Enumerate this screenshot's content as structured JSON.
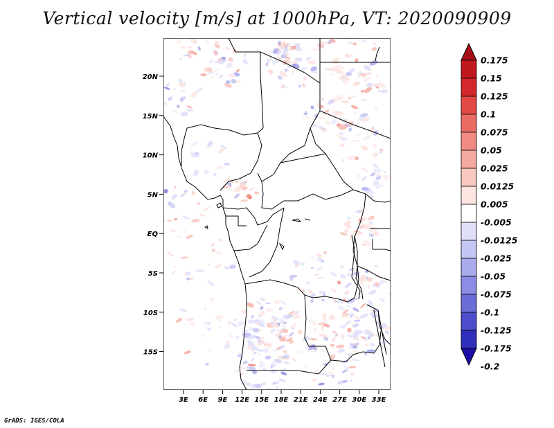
{
  "title": "Vertical velocity [m/s] at 1000hPa, VT: 2020090909",
  "credit": "GrADS: IGES/COLA",
  "map": {
    "lat_ticks": [
      "20N",
      "15N",
      "10N",
      "5N",
      "EQ",
      "5S",
      "10S",
      "15S"
    ],
    "lon_ticks": [
      "3E",
      "6E",
      "9E",
      "12E",
      "15E",
      "18E",
      "21E",
      "24E",
      "27E",
      "30E",
      "33E"
    ]
  },
  "colorbar": {
    "levels": [
      "0.175",
      "0.15",
      "0.125",
      "0.1",
      "0.075",
      "0.05",
      "0.025",
      "0.0125",
      "0.005",
      "-0.005",
      "-0.0125",
      "-0.025",
      "-0.05",
      "-0.075",
      "-0.1",
      "-0.125",
      "-0.175",
      "-0.2"
    ],
    "colors": [
      "#a50f15",
      "#c0181e",
      "#d3272b",
      "#e34a45",
      "#ea6b62",
      "#ef8b80",
      "#f4a9a0",
      "#f8c7c0",
      "#fce4e0",
      "#ffffff",
      "#e0e0fb",
      "#c6c6f5",
      "#aaaaee",
      "#8c8ce4",
      "#6c6cd8",
      "#4d4dcb",
      "#2f2fbb",
      "#1a0ea6"
    ]
  }
}
